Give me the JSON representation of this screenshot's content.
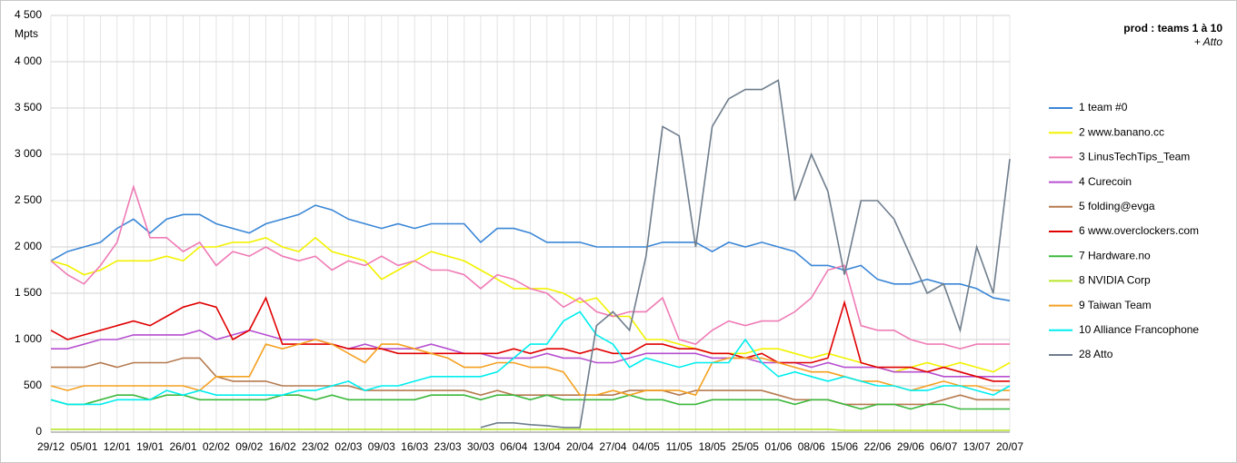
{
  "chart_data": {
    "type": "line",
    "title": "prod : teams 1 à 10",
    "subtitle": "+ Atto",
    "y_label": "Mpts",
    "categories": [
      "29/12",
      null,
      "05/01",
      null,
      "12/01",
      null,
      "19/01",
      null,
      "26/01",
      null,
      "02/02",
      null,
      "09/02",
      null,
      "16/02",
      null,
      "23/02",
      null,
      "02/03",
      null,
      "09/03",
      null,
      "16/03",
      null,
      "23/03",
      null,
      "30/03",
      null,
      "06/04",
      null,
      "13/04",
      null,
      "20/04",
      null,
      "27/04",
      null,
      "04/05",
      null,
      "11/05",
      null,
      "18/05",
      null,
      "25/05",
      null,
      "01/06",
      null,
      "08/06",
      null,
      "15/06",
      null,
      "22/06",
      null,
      "29/06",
      null,
      "06/07",
      null,
      "13/07",
      null,
      "20/07"
    ],
    "ylim": [
      0,
      4500
    ],
    "yticks": [
      0,
      500,
      {
        "value": 1000,
        "label": "1 000"
      },
      {
        "value": 1500,
        "label": "1 500"
      },
      {
        "value": 2000,
        "label": "2 000"
      },
      {
        "value": 2500,
        "label": "2 500"
      },
      {
        "value": 3000,
        "label": "3 000"
      },
      {
        "value": 3500,
        "label": "3 500"
      },
      {
        "value": 4000,
        "label": "4 000"
      },
      {
        "value": 4500,
        "label": "4 500"
      }
    ],
    "grid": true,
    "legend": "right",
    "series": [
      {
        "name": "1 team #0",
        "color": "#3a86d6",
        "values": [
          1850,
          1950,
          2000,
          2050,
          2200,
          2300,
          2150,
          2300,
          2350,
          2350,
          2250,
          2200,
          2150,
          2250,
          2300,
          2350,
          2450,
          2400,
          2300,
          2250,
          2200,
          2250,
          2200,
          2250,
          2250,
          2250,
          2050,
          2200,
          2200,
          2150,
          2050,
          2050,
          2050,
          2000,
          2000,
          2000,
          2000,
          2050,
          2050,
          2050,
          1950,
          2050,
          2000,
          2050,
          2000,
          1950,
          1800,
          1800,
          1750,
          1800,
          1650,
          1600,
          1600,
          1650,
          1600,
          1600,
          1550,
          1450,
          1420
        ]
      },
      {
        "name": "2 www.banano.cc",
        "color": "#f2f200",
        "values": [
          1850,
          1800,
          1700,
          1750,
          1850,
          1850,
          1850,
          1900,
          1850,
          2000,
          2000,
          2050,
          2050,
          2100,
          2000,
          1950,
          2100,
          1950,
          1900,
          1850,
          1650,
          1750,
          1850,
          1950,
          1900,
          1850,
          1750,
          1650,
          1550,
          1550,
          1550,
          1500,
          1400,
          1450,
          1250,
          1250,
          1000,
          1000,
          950,
          900,
          850,
          850,
          850,
          900,
          900,
          850,
          800,
          850,
          800,
          750,
          700,
          650,
          700,
          750,
          700,
          750,
          700,
          650,
          750
        ]
      },
      {
        "name": "3 LinusTechTips_Team",
        "color": "#ef7bb5",
        "values": [
          1850,
          1700,
          1600,
          1800,
          2050,
          2650,
          2100,
          2100,
          1950,
          2050,
          1800,
          1950,
          1900,
          2000,
          1900,
          1850,
          1900,
          1750,
          1850,
          1800,
          1900,
          1800,
          1850,
          1750,
          1750,
          1700,
          1550,
          1700,
          1650,
          1550,
          1500,
          1350,
          1450,
          1300,
          1250,
          1300,
          1300,
          1450,
          1000,
          950,
          1100,
          1200,
          1150,
          1200,
          1200,
          1300,
          1450,
          1750,
          1800,
          1150,
          1100,
          1100,
          1000,
          950,
          950,
          900,
          950,
          950,
          950
        ]
      },
      {
        "name": "4 Curecoin",
        "color": "#b64fd0",
        "values": [
          900,
          900,
          950,
          1000,
          1000,
          1050,
          1050,
          1050,
          1050,
          1100,
          1000,
          1050,
          1100,
          1050,
          1000,
          1000,
          1000,
          950,
          900,
          950,
          900,
          900,
          900,
          950,
          900,
          850,
          850,
          800,
          800,
          800,
          850,
          800,
          800,
          750,
          750,
          800,
          850,
          850,
          850,
          850,
          800,
          800,
          800,
          750,
          750,
          750,
          700,
          750,
          700,
          700,
          700,
          650,
          650,
          650,
          600,
          600,
          600,
          600,
          600
        ]
      },
      {
        "name": "5 folding@evga",
        "color": "#b57a4f",
        "values": [
          700,
          700,
          700,
          750,
          700,
          750,
          750,
          750,
          800,
          800,
          600,
          550,
          550,
          550,
          500,
          500,
          500,
          500,
          500,
          450,
          450,
          450,
          450,
          450,
          450,
          450,
          400,
          450,
          400,
          400,
          400,
          400,
          400,
          400,
          400,
          450,
          450,
          450,
          400,
          450,
          450,
          450,
          450,
          450,
          400,
          350,
          350,
          350,
          300,
          300,
          300,
          300,
          300,
          300,
          350,
          400,
          350,
          350,
          350
        ]
      },
      {
        "name": "6 www.overclockers.com",
        "color": "#e00000",
        "values": [
          1100,
          1000,
          1050,
          1100,
          1150,
          1200,
          1150,
          1250,
          1350,
          1400,
          1350,
          1000,
          1100,
          1450,
          950,
          950,
          950,
          950,
          900,
          900,
          900,
          850,
          850,
          850,
          850,
          850,
          850,
          850,
          900,
          850,
          900,
          900,
          850,
          900,
          850,
          850,
          950,
          950,
          900,
          900,
          850,
          850,
          800,
          850,
          750,
          750,
          750,
          800,
          1400,
          750,
          700,
          700,
          700,
          650,
          700,
          650,
          600,
          550,
          550
        ]
      },
      {
        "name": "7 Hardware.no",
        "color": "#3cb83c",
        "values": [
          350,
          300,
          300,
          350,
          400,
          400,
          350,
          400,
          400,
          350,
          350,
          350,
          350,
          350,
          400,
          400,
          350,
          400,
          350,
          350,
          350,
          350,
          350,
          400,
          400,
          400,
          350,
          400,
          400,
          350,
          400,
          350,
          350,
          350,
          350,
          400,
          350,
          350,
          300,
          300,
          350,
          350,
          350,
          350,
          350,
          300,
          350,
          350,
          300,
          250,
          300,
          300,
          250,
          300,
          300,
          250,
          250,
          250,
          250
        ]
      },
      {
        "name": "8 NVIDIA Corp",
        "color": "#b8e62a",
        "values": [
          30,
          30,
          30,
          30,
          30,
          30,
          30,
          30,
          30,
          30,
          30,
          30,
          30,
          30,
          30,
          30,
          30,
          30,
          30,
          30,
          30,
          30,
          30,
          30,
          30,
          30,
          30,
          30,
          30,
          30,
          30,
          30,
          30,
          30,
          30,
          30,
          30,
          30,
          30,
          30,
          30,
          30,
          30,
          30,
          30,
          30,
          30,
          30,
          20,
          20,
          20,
          20,
          20,
          20,
          20,
          20,
          20,
          20,
          20
        ]
      },
      {
        "name": "9 Taiwan Team",
        "color": "#f4a020",
        "values": [
          500,
          450,
          500,
          500,
          500,
          500,
          500,
          500,
          500,
          450,
          600,
          600,
          600,
          950,
          900,
          950,
          1000,
          950,
          850,
          750,
          950,
          950,
          900,
          850,
          800,
          700,
          700,
          750,
          750,
          700,
          700,
          650,
          400,
          400,
          450,
          400,
          450,
          450,
          450,
          400,
          750,
          800,
          800,
          800,
          750,
          700,
          650,
          650,
          600,
          550,
          550,
          500,
          450,
          500,
          550,
          500,
          500,
          450,
          450
        ]
      },
      {
        "name": "10 Alliance Francophone",
        "color": "#00eeee",
        "values": [
          350,
          300,
          300,
          300,
          350,
          350,
          350,
          450,
          400,
          450,
          400,
          400,
          400,
          400,
          400,
          450,
          450,
          500,
          550,
          450,
          500,
          500,
          550,
          600,
          600,
          600,
          600,
          650,
          800,
          950,
          950,
          1200,
          1300,
          1050,
          950,
          700,
          800,
          750,
          700,
          750,
          750,
          750,
          1000,
          750,
          600,
          650,
          600,
          550,
          600,
          550,
          500,
          500,
          450,
          450,
          500,
          500,
          450,
          400,
          500
        ]
      },
      {
        "name": "28 Atto",
        "color": "#6e7d8c",
        "values": [
          null,
          null,
          null,
          null,
          null,
          null,
          null,
          null,
          null,
          null,
          null,
          null,
          null,
          null,
          null,
          null,
          null,
          null,
          null,
          null,
          null,
          null,
          null,
          null,
          null,
          null,
          50,
          100,
          100,
          80,
          70,
          50,
          50,
          1150,
          1300,
          1100,
          1900,
          3300,
          3200,
          2000,
          3300,
          3600,
          3700,
          3700,
          3800,
          2500,
          3000,
          2600,
          1700,
          2500,
          2500,
          2300,
          1900,
          1500,
          1600,
          1100,
          2000,
          1500,
          2950
        ]
      }
    ]
  }
}
